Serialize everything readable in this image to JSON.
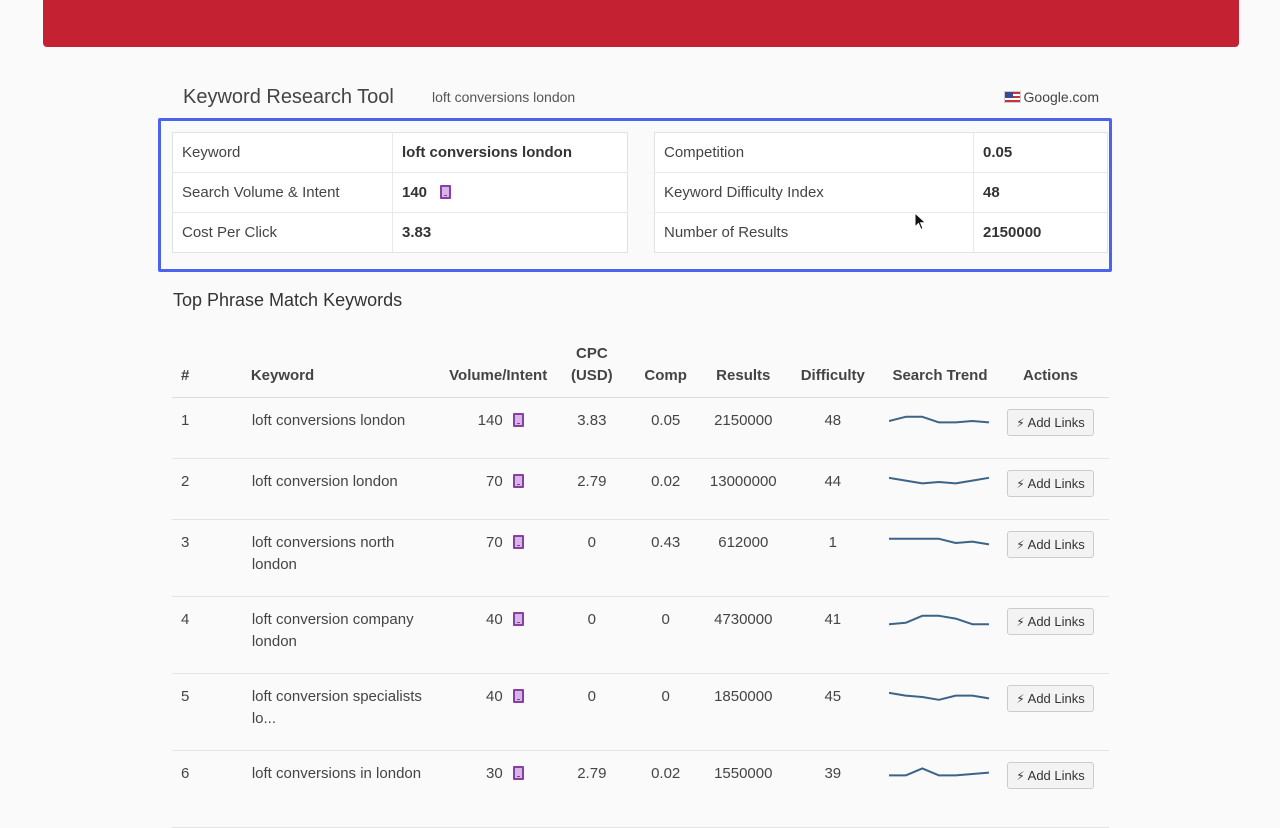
{
  "header": {
    "title": "Keyword Research Tool",
    "query": "loft conversions london",
    "engine": "Google.com",
    "flag_icon": "us-flag-icon"
  },
  "summary_left": [
    {
      "label": "Keyword",
      "value": "loft conversions london"
    },
    {
      "label": "Search Volume & Intent",
      "value": "140"
    },
    {
      "label": "Cost Per Click",
      "value": "3.83"
    }
  ],
  "summary_right": [
    {
      "label": "Competition",
      "value": "0.05"
    },
    {
      "label": "Keyword Difficulty Index",
      "value": "48"
    },
    {
      "label": "Number of Results",
      "value": "2150000"
    }
  ],
  "section_title": "Top Phrase Match Keywords",
  "columns": {
    "num": "#",
    "keyword": "Keyword",
    "volume": "Volume/Intent",
    "cpc_line1": "CPC",
    "cpc_line2": "(USD)",
    "comp": "Comp",
    "results": "Results",
    "difficulty": "Difficulty",
    "trend": "Search Trend",
    "actions": "Actions"
  },
  "rows": [
    {
      "num": "1",
      "keyword": "loft conversions london",
      "volume": "140",
      "cpc": "3.83",
      "comp": "0.05",
      "results": "2150000",
      "difficulty": "48",
      "action": "Add Links",
      "trend": [
        5,
        8,
        8,
        4,
        4,
        5,
        4
      ]
    },
    {
      "num": "2",
      "keyword": "loft conversion london",
      "volume": "70",
      "cpc": "2.79",
      "comp": "0.02",
      "results": "13000000",
      "difficulty": "44",
      "action": "Add Links",
      "trend": [
        8,
        6,
        4,
        5,
        4,
        6,
        8
      ]
    },
    {
      "num": "3",
      "keyword": "loft conversions north london",
      "volume": "70",
      "cpc": "0",
      "comp": "0.43",
      "results": "612000",
      "difficulty": "1",
      "action": "Add Links",
      "trend": [
        8,
        8,
        8,
        8,
        5,
        6,
        4
      ]
    },
    {
      "num": "4",
      "keyword": "loft conversion company london",
      "volume": "40",
      "cpc": "0",
      "comp": "0",
      "results": "4730000",
      "difficulty": "41",
      "action": "Add Links",
      "trend": [
        2,
        3,
        8,
        8,
        6,
        2,
        2
      ]
    },
    {
      "num": "5",
      "keyword": "loft conversion specialists lo...",
      "volume": "40",
      "cpc": "0",
      "comp": "0",
      "results": "1850000",
      "difficulty": "45",
      "action": "Add Links",
      "trend": [
        8,
        6,
        5,
        3,
        6,
        6,
        4
      ]
    },
    {
      "num": "6",
      "keyword": "loft conversions in london",
      "volume": "30",
      "cpc": "2.79",
      "comp": "0.02",
      "results": "1550000",
      "difficulty": "39",
      "action": "Add Links",
      "trend": [
        4,
        4,
        9,
        4,
        4,
        5,
        6
      ]
    }
  ],
  "colors": {
    "brand_bar": "#c42233",
    "highlight": "#4a64ee",
    "trend_line": "#3d6488",
    "intent_icon": "#8a3fa0"
  },
  "icons": {
    "intent": "mobile-intent-icon",
    "action": "lightning-icon",
    "cursor": "mouse-cursor-icon"
  }
}
